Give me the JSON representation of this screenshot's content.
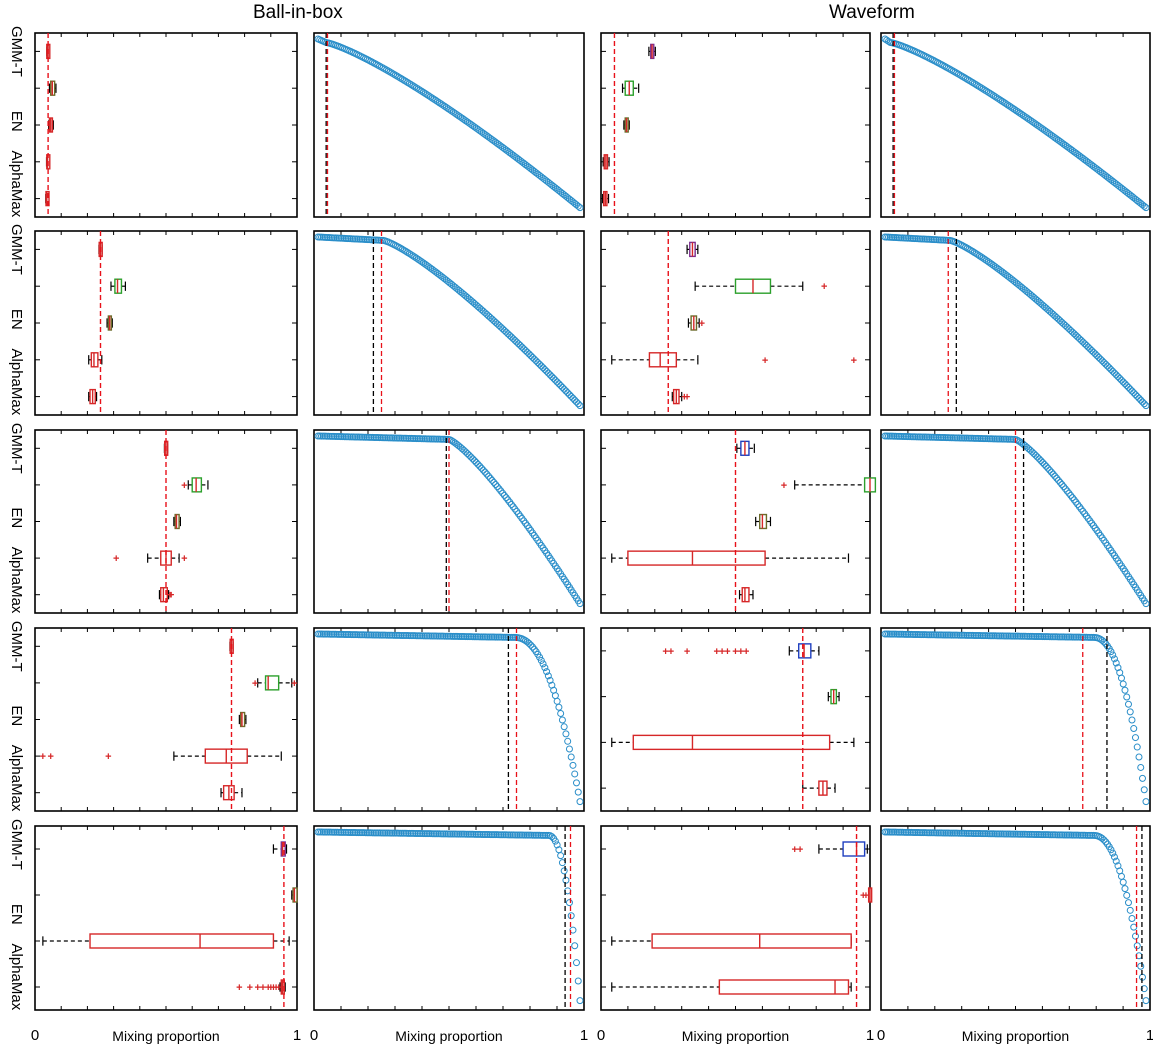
{
  "titles": {
    "left": "Ball-in-box",
    "right": "Waveform"
  },
  "x_axis": {
    "label": "Mixing proportion",
    "tick_min": "0",
    "tick_max": "1"
  },
  "row_labels": [
    "GMM-T",
    "EN",
    "AlphaMax"
  ],
  "colors": {
    "box_red": "#d62728",
    "box_green": "#2ca02c",
    "box_purple": "#7b2d8e",
    "box_blue": "#1f3fbf",
    "box_olive": "#6b6b2a",
    "circle": "#2a8ec9",
    "true_line": "#e8111a",
    "est_line": "#000000"
  },
  "chart_data": [
    {
      "type": "box",
      "dataset": "Ball-in-box",
      "row": 1,
      "xlim": [
        0,
        1
      ],
      "true_proportion": 0.05,
      "boxes": [
        {
          "q1": 0.045,
          "med": 0.05,
          "q3": 0.055,
          "wlo": 0.045,
          "whi": 0.055,
          "color": "box_red",
          "outliers": []
        },
        {
          "q1": 0.06,
          "med": 0.066,
          "q3": 0.075,
          "wlo": 0.055,
          "whi": 0.08,
          "color": "box_olive",
          "outliers": []
        },
        {
          "q1": 0.055,
          "med": 0.06,
          "q3": 0.066,
          "wlo": 0.052,
          "whi": 0.07,
          "color": "box_red",
          "outliers": []
        },
        {
          "q1": 0.045,
          "med": 0.048,
          "q3": 0.052,
          "wlo": 0.044,
          "whi": 0.053,
          "color": "box_red",
          "outliers": []
        },
        {
          "q1": 0.042,
          "med": 0.045,
          "q3": 0.048,
          "wlo": 0.041,
          "whi": 0.049,
          "color": "box_red",
          "outliers": []
        }
      ]
    },
    {
      "type": "line",
      "dataset": "Ball-in-box",
      "row": 1,
      "plateau_end": 0.03,
      "true_proportion": 0.05,
      "estimate": 0.045
    },
    {
      "type": "box",
      "dataset": "Waveform",
      "row": 1,
      "xlim": [
        0,
        1
      ],
      "true_proportion": 0.05,
      "boxes": [
        {
          "q1": 0.185,
          "med": 0.19,
          "q3": 0.195,
          "wlo": 0.178,
          "whi": 0.202,
          "color": "box_purple",
          "outliers": []
        },
        {
          "q1": 0.09,
          "med": 0.105,
          "q3": 0.12,
          "wlo": 0.08,
          "whi": 0.14,
          "color": "box_green",
          "outliers": []
        },
        {
          "q1": 0.09,
          "med": 0.095,
          "q3": 0.1,
          "wlo": 0.085,
          "whi": 0.105,
          "color": "box_olive",
          "outliers": []
        },
        {
          "q1": 0.012,
          "med": 0.018,
          "q3": 0.024,
          "wlo": 0.008,
          "whi": 0.03,
          "color": "box_red",
          "outliers": []
        },
        {
          "q1": 0.01,
          "med": 0.016,
          "q3": 0.022,
          "wlo": 0.006,
          "whi": 0.028,
          "color": "box_red",
          "outliers": []
        }
      ]
    },
    {
      "type": "line",
      "dataset": "Waveform",
      "row": 1,
      "plateau_end": 0.02,
      "true_proportion": 0.05,
      "estimate": 0.045
    },
    {
      "type": "box",
      "dataset": "Ball-in-box",
      "row": 2,
      "xlim": [
        0,
        1
      ],
      "true_proportion": 0.25,
      "boxes": [
        {
          "q1": 0.245,
          "med": 0.25,
          "q3": 0.255,
          "wlo": 0.244,
          "whi": 0.256,
          "color": "box_red",
          "outliers": []
        },
        {
          "q1": 0.305,
          "med": 0.315,
          "q3": 0.33,
          "wlo": 0.29,
          "whi": 0.345,
          "color": "box_green",
          "outliers": []
        },
        {
          "q1": 0.28,
          "med": 0.285,
          "q3": 0.29,
          "wlo": 0.275,
          "whi": 0.295,
          "color": "box_olive",
          "outliers": []
        },
        {
          "q1": 0.215,
          "med": 0.225,
          "q3": 0.24,
          "wlo": 0.205,
          "whi": 0.255,
          "color": "box_red",
          "outliers": []
        },
        {
          "q1": 0.21,
          "med": 0.22,
          "q3": 0.23,
          "wlo": 0.205,
          "whi": 0.235,
          "color": "box_red",
          "outliers": []
        }
      ]
    },
    {
      "type": "line",
      "dataset": "Ball-in-box",
      "row": 2,
      "plateau_end": 0.25,
      "true_proportion": 0.25,
      "estimate": 0.22
    },
    {
      "type": "box",
      "dataset": "Waveform",
      "row": 2,
      "xlim": [
        0,
        1
      ],
      "true_proportion": 0.25,
      "boxes": [
        {
          "q1": 0.33,
          "med": 0.34,
          "q3": 0.35,
          "wlo": 0.32,
          "whi": 0.36,
          "color": "box_purple",
          "outliers": []
        },
        {
          "q1": 0.5,
          "med": 0.565,
          "q3": 0.63,
          "wlo": 0.35,
          "whi": 0.75,
          "color": "box_green",
          "outliers": [
            0.83
          ]
        },
        {
          "q1": 0.335,
          "med": 0.345,
          "q3": 0.355,
          "wlo": 0.325,
          "whi": 0.365,
          "color": "box_olive",
          "outliers": [
            0.375
          ]
        },
        {
          "q1": 0.18,
          "med": 0.22,
          "q3": 0.28,
          "wlo": 0.04,
          "whi": 0.36,
          "color": "box_red",
          "outliers": [
            0.61,
            0.94
          ]
        },
        {
          "q1": 0.27,
          "med": 0.28,
          "q3": 0.29,
          "wlo": 0.265,
          "whi": 0.3,
          "color": "box_red",
          "outliers": [
            0.31,
            0.32
          ]
        }
      ]
    },
    {
      "type": "line",
      "dataset": "Waveform",
      "row": 2,
      "plateau_end": 0.25,
      "true_proportion": 0.25,
      "estimate": 0.28
    },
    {
      "type": "box",
      "dataset": "Ball-in-box",
      "row": 3,
      "xlim": [
        0,
        1
      ],
      "true_proportion": 0.5,
      "boxes": [
        {
          "q1": 0.495,
          "med": 0.5,
          "q3": 0.505,
          "wlo": 0.494,
          "whi": 0.506,
          "color": "box_red",
          "outliers": []
        },
        {
          "q1": 0.6,
          "med": 0.615,
          "q3": 0.635,
          "wlo": 0.585,
          "whi": 0.66,
          "color": "box_green",
          "outliers": [
            0.57
          ]
        },
        {
          "q1": 0.535,
          "med": 0.54,
          "q3": 0.55,
          "wlo": 0.53,
          "whi": 0.555,
          "color": "box_olive",
          "outliers": []
        },
        {
          "q1": 0.48,
          "med": 0.5,
          "q3": 0.52,
          "wlo": 0.43,
          "whi": 0.55,
          "color": "box_red",
          "outliers": [
            0.31,
            0.57
          ]
        },
        {
          "q1": 0.48,
          "med": 0.49,
          "q3": 0.505,
          "wlo": 0.475,
          "whi": 0.51,
          "color": "box_red",
          "outliers": [
            0.515,
            0.52
          ]
        }
      ]
    },
    {
      "type": "line",
      "dataset": "Ball-in-box",
      "row": 3,
      "plateau_end": 0.5,
      "true_proportion": 0.5,
      "estimate": 0.49
    },
    {
      "type": "box",
      "dataset": "Waveform",
      "row": 3,
      "xlim": [
        0,
        1
      ],
      "true_proportion": 0.5,
      "boxes": [
        {
          "q1": 0.52,
          "med": 0.535,
          "q3": 0.55,
          "wlo": 0.505,
          "whi": 0.57,
          "color": "box_blue",
          "outliers": []
        },
        {
          "q1": 0.98,
          "med": 1.0,
          "q3": 1.02,
          "wlo": 0.72,
          "whi": 1.02,
          "color": "box_green",
          "outliers": [
            0.68
          ]
        },
        {
          "q1": 0.59,
          "med": 0.6,
          "q3": 0.615,
          "wlo": 0.575,
          "whi": 0.63,
          "color": "box_olive",
          "outliers": []
        },
        {
          "q1": 0.1,
          "med": 0.34,
          "q3": 0.61,
          "wlo": 0.04,
          "whi": 0.92,
          "color": "box_red",
          "outliers": []
        },
        {
          "q1": 0.525,
          "med": 0.535,
          "q3": 0.55,
          "wlo": 0.515,
          "whi": 0.565,
          "color": "box_red",
          "outliers": []
        }
      ]
    },
    {
      "type": "line",
      "dataset": "Waveform",
      "row": 3,
      "plateau_end": 0.5,
      "true_proportion": 0.5,
      "estimate": 0.53
    },
    {
      "type": "box",
      "dataset": "Ball-in-box",
      "row": 4,
      "xlim": [
        0,
        1
      ],
      "true_proportion": 0.75,
      "boxes": [
        {
          "q1": 0.745,
          "med": 0.75,
          "q3": 0.755,
          "wlo": 0.744,
          "whi": 0.756,
          "color": "box_red",
          "outliers": []
        },
        {
          "q1": 0.88,
          "med": 0.89,
          "q3": 0.93,
          "wlo": 0.85,
          "whi": 0.98,
          "color": "box_green",
          "outliers": [
            0.84,
            0.99
          ]
        },
        {
          "q1": 0.785,
          "med": 0.79,
          "q3": 0.8,
          "wlo": 0.78,
          "whi": 0.805,
          "color": "box_olive",
          "outliers": []
        },
        {
          "q1": 0.65,
          "med": 0.73,
          "q3": 0.81,
          "wlo": 0.53,
          "whi": 0.94,
          "color": "box_red",
          "outliers": [
            0.03,
            0.06,
            0.28
          ]
        },
        {
          "q1": 0.72,
          "med": 0.74,
          "q3": 0.76,
          "wlo": 0.71,
          "whi": 0.79,
          "color": "box_red",
          "outliers": []
        }
      ]
    },
    {
      "type": "line",
      "dataset": "Ball-in-box",
      "row": 4,
      "plateau_end": 0.75,
      "true_proportion": 0.75,
      "estimate": 0.72
    },
    {
      "type": "box",
      "dataset": "Waveform",
      "row": 4,
      "xlim": [
        0,
        1
      ],
      "true_proportion": 0.75,
      "boxes": [
        {
          "q1": 0.735,
          "med": 0.755,
          "q3": 0.78,
          "wlo": 0.7,
          "whi": 0.81,
          "color": "box_blue",
          "outliers": [
            0.24,
            0.26,
            0.32,
            0.43,
            0.45,
            0.47,
            0.5,
            0.52,
            0.54
          ]
        },
        {
          "q1": 0.855,
          "med": 0.865,
          "q3": 0.875,
          "wlo": 0.845,
          "whi": 0.885,
          "color": "box_green",
          "outliers": []
        },
        {
          "q1": 0.12,
          "med": 0.34,
          "q3": 0.85,
          "wlo": 0.04,
          "whi": 0.94,
          "color": "box_red",
          "outliers": []
        },
        {
          "q1": 0.81,
          "med": 0.825,
          "q3": 0.84,
          "wlo": 0.75,
          "whi": 0.87,
          "color": "box_red",
          "outliers": []
        }
      ]
    },
    {
      "type": "line",
      "dataset": "Waveform",
      "row": 4,
      "plateau_end": 0.8,
      "true_proportion": 0.75,
      "estimate": 0.84
    },
    {
      "type": "box",
      "dataset": "Ball-in-box",
      "row": 5,
      "xlim": [
        0,
        1
      ],
      "true_proportion": 0.95,
      "boxes": [
        {
          "q1": 0.94,
          "med": 0.945,
          "q3": 0.955,
          "wlo": 0.91,
          "whi": 0.96,
          "color": "box_purple",
          "outliers": []
        },
        {
          "q1": 0.985,
          "med": 0.99,
          "q3": 1.0,
          "wlo": 0.98,
          "whi": 1.0,
          "color": "box_olive",
          "outliers": []
        },
        {
          "q1": 0.21,
          "med": 0.63,
          "q3": 0.91,
          "wlo": 0.03,
          "whi": 0.97,
          "color": "box_red",
          "outliers": []
        },
        {
          "q1": 0.94,
          "med": 0.945,
          "q3": 0.95,
          "wlo": 0.935,
          "whi": 0.955,
          "color": "box_red",
          "outliers": [
            0.78,
            0.82,
            0.85,
            0.87,
            0.89,
            0.9,
            0.91,
            0.92,
            0.93
          ]
        }
      ]
    },
    {
      "type": "line",
      "dataset": "Ball-in-box",
      "row": 5,
      "plateau_end": 0.88,
      "true_proportion": 0.95,
      "estimate": 0.93
    },
    {
      "type": "box",
      "dataset": "Waveform",
      "row": 5,
      "xlim": [
        0,
        1
      ],
      "true_proportion": 0.95,
      "boxes": [
        {
          "q1": 0.9,
          "med": 0.95,
          "q3": 0.98,
          "wlo": 0.81,
          "whi": 0.99,
          "color": "box_blue",
          "outliers": [
            0.72,
            0.74
          ]
        },
        {
          "q1": 0.995,
          "med": 1.0,
          "q3": 1.0,
          "wlo": 0.995,
          "whi": 1.0,
          "color": "box_red",
          "outliers": [
            0.975,
            0.985
          ]
        },
        {
          "q1": 0.19,
          "med": 0.59,
          "q3": 0.93,
          "wlo": 0.04,
          "whi": 0.93,
          "color": "box_red",
          "outliers": []
        },
        {
          "q1": 0.44,
          "med": 0.87,
          "q3": 0.92,
          "wlo": 0.04,
          "whi": 0.93,
          "color": "box_red",
          "outliers": []
        }
      ]
    },
    {
      "type": "line",
      "dataset": "Waveform",
      "row": 5,
      "plateau_end": 0.8,
      "true_proportion": 0.95,
      "estimate": 0.97
    }
  ]
}
